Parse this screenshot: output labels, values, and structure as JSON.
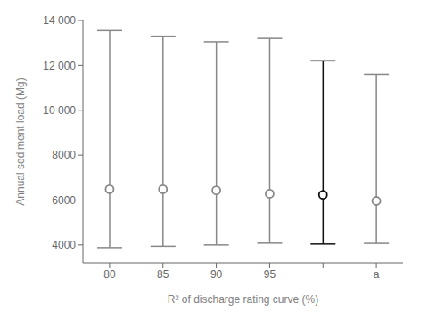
{
  "chart_data": {
    "type": "errorbar",
    "categories": [
      "80",
      "85",
      "90",
      "95",
      null,
      "a"
    ],
    "values": [
      6480,
      6480,
      6430,
      6280,
      6230,
      5960
    ],
    "lower": [
      3880,
      3940,
      4000,
      4080,
      4040,
      4070
    ],
    "upper": [
      13550,
      13300,
      13050,
      13200,
      12200,
      11600
    ],
    "colors": [
      "#888888",
      "#888888",
      "#888888",
      "#888888",
      "#111111",
      "#888888"
    ],
    "marker": "circle",
    "xlabel": "R² of discharge rating curve (%)",
    "ylabel": "Annual sediment load (Mg)",
    "ylim": [
      3200,
      14000
    ],
    "yticks": [
      4000,
      6000,
      8000,
      {
        "value": 10000,
        "label": "10 000"
      },
      {
        "value": 12000,
        "label": "12 000"
      },
      {
        "value": 14000,
        "label": "14 000"
      }
    ],
    "grid": false
  }
}
